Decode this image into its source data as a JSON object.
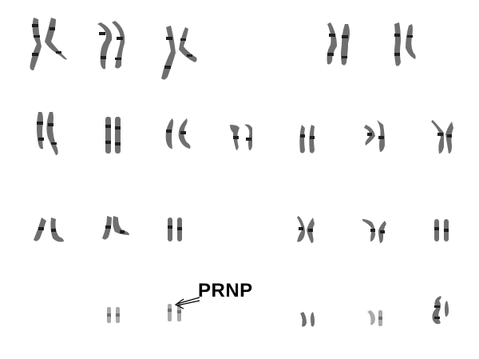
{
  "annotation": {
    "label": "PRNP"
  }
}
